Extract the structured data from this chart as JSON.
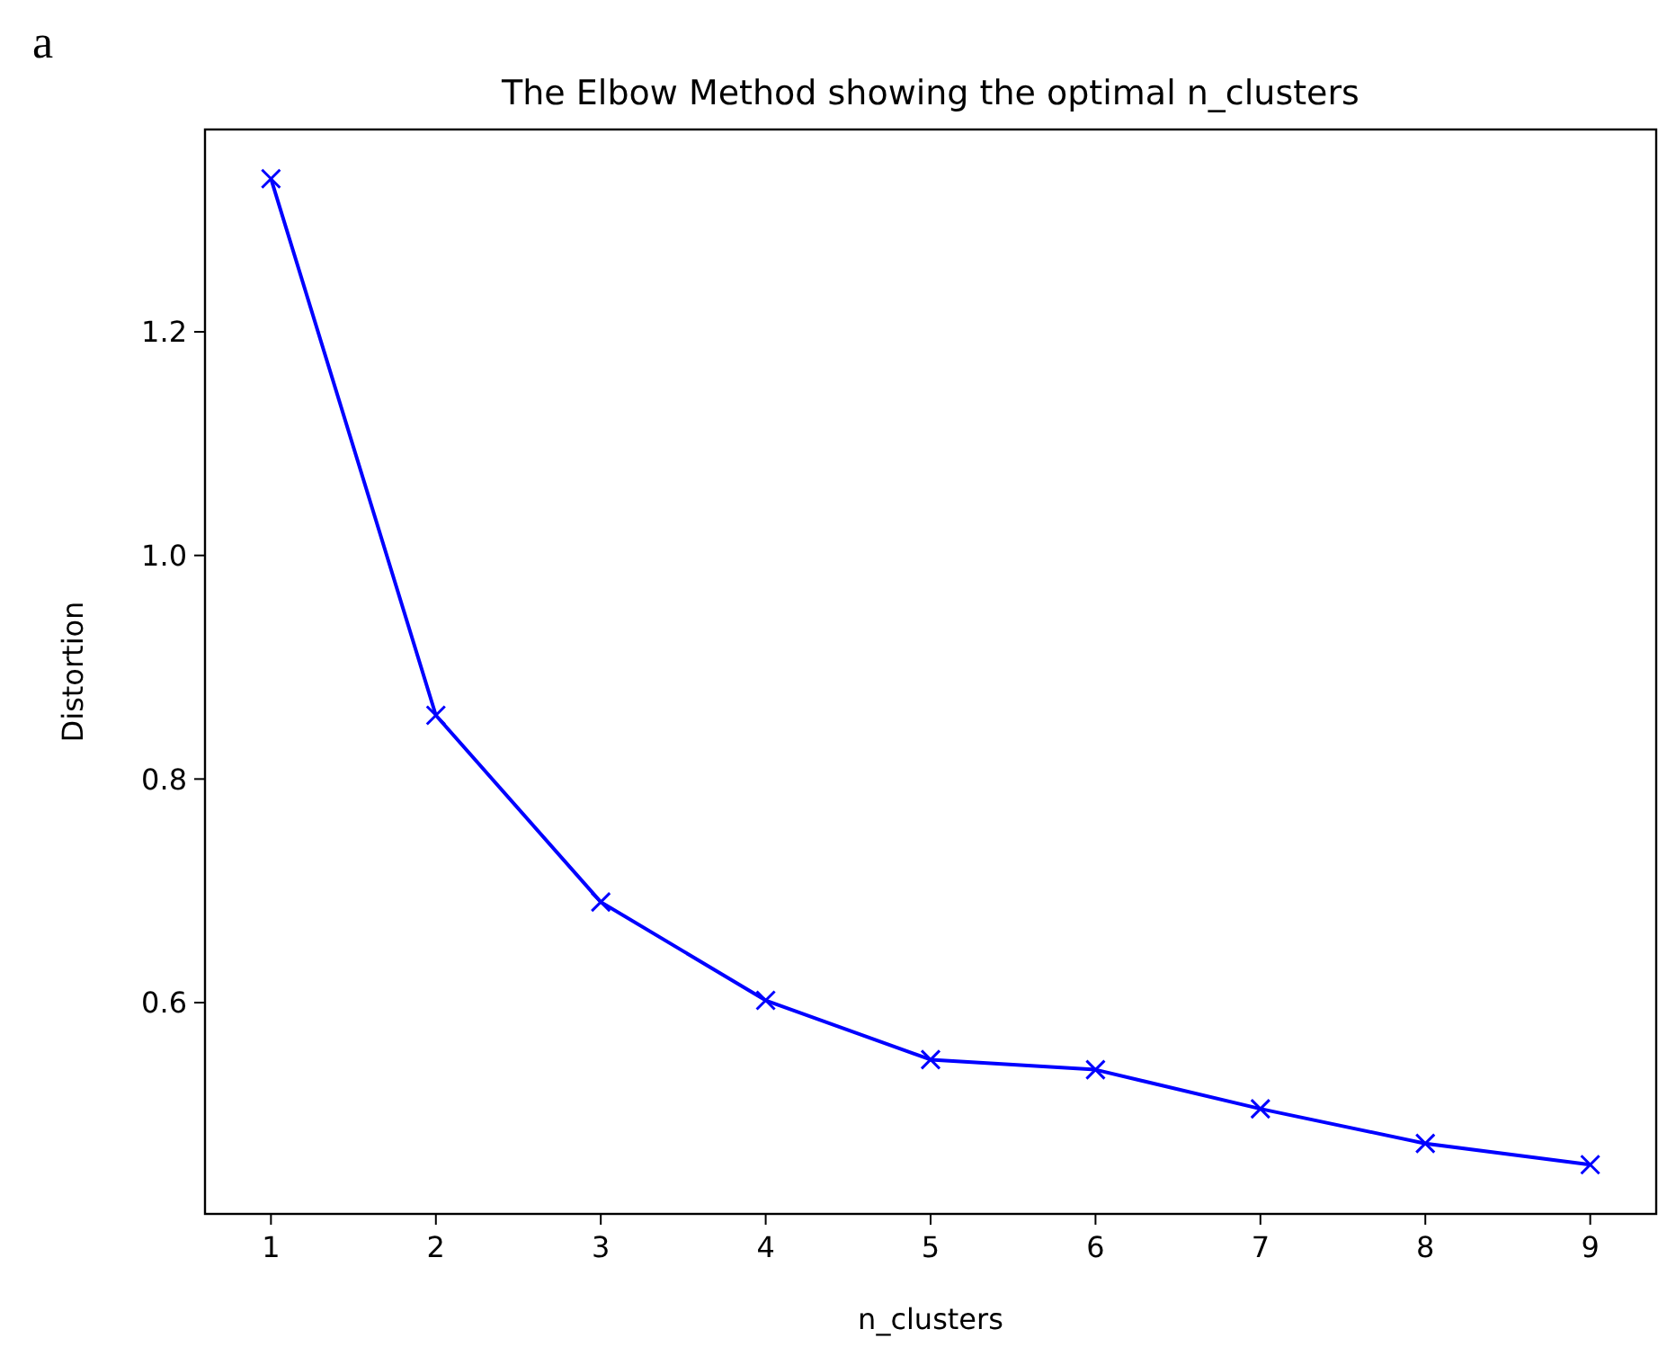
{
  "chart_data": {
    "type": "line",
    "title": "The Elbow Method showing the optimal n_clusters",
    "xlabel": "n_clusters",
    "ylabel": "Distortion",
    "annotations": [
      "a"
    ],
    "x": [
      1,
      2,
      3,
      4,
      5,
      6,
      7,
      8,
      9
    ],
    "series": [
      {
        "color": "#0000ff",
        "values": [
          1.337,
          0.857,
          0.69,
          0.602,
          0.549,
          0.54,
          0.505,
          0.474,
          0.455
        ]
      }
    ],
    "xlim": [
      0.6,
      9.4
    ],
    "xticks": [
      1,
      2,
      3,
      4,
      5,
      6,
      7,
      8,
      9
    ],
    "ylim": [
      0.411,
      1.381
    ],
    "yticks": [
      {
        "value": 0.6,
        "label": "0.6"
      },
      {
        "value": 0.8,
        "label": "0.8"
      },
      {
        "value": 1.0,
        "label": "1.0"
      },
      {
        "value": 1.2,
        "label": "1.2"
      }
    ],
    "marker": "cross",
    "line_style": "solid",
    "grid": false
  }
}
